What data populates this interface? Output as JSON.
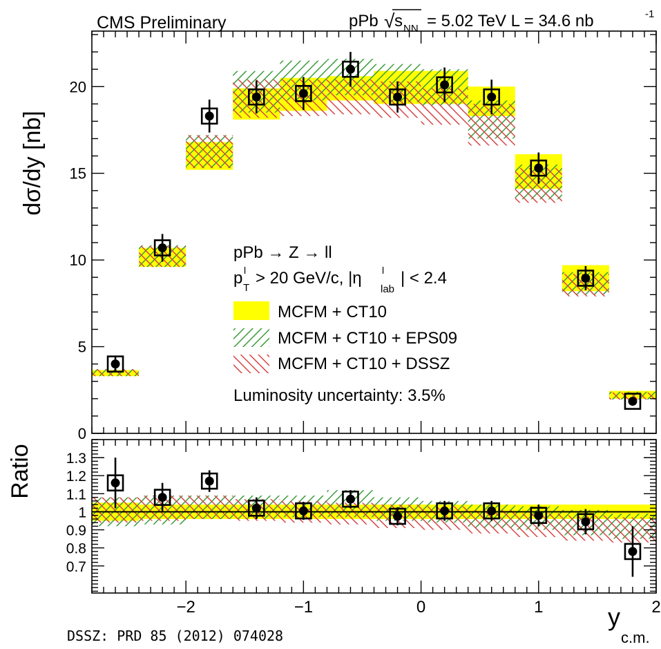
{
  "header": {
    "experiment": "CMS Preliminary",
    "system": "pPb",
    "sqrt_symbol": "√",
    "sqrt_arg": "s",
    "sqrt_sub": "NN",
    "energy": "= 5.02 TeV L = 34.6 nb",
    "lumi_exp": "-1"
  },
  "footer": {
    "reference": "DSSZ: PRD 85 (2012) 074028"
  },
  "annotations": {
    "process": "pPb → Z → ll",
    "cut_p": "p",
    "cut_p_sup": "l",
    "cut_p_sub": "T",
    "cut_mid": "> 20 GeV/c, |η",
    "cut_eta_sup": "l",
    "cut_eta_sub": "lab",
    "cut_end": "| < 2.4",
    "luminosity": "Luminosity uncertainty: 3.5%"
  },
  "legend": {
    "placement": "center",
    "entries": [
      {
        "label": "MCFM + CT10",
        "style": "solid",
        "color": "#ffff00"
      },
      {
        "label": "MCFM + CT10 + EPS09",
        "style": "hatch-forward",
        "color": "#3a9c3a"
      },
      {
        "label": "MCFM + CT10 + DSSZ",
        "style": "hatch-backward",
        "color": "#d64545"
      }
    ]
  },
  "colors": {
    "ct10": "#ffff00",
    "eps09": "#3a9c3a",
    "dssz": "#d64545",
    "marker": "#000000"
  },
  "chart_data": [
    {
      "type": "bar",
      "ylabel": "dσ/dy [nb]",
      "xlim": [
        -2.8,
        2.0
      ],
      "ylim": [
        0,
        23.2
      ],
      "yticks": [
        0,
        5,
        10,
        15,
        20
      ],
      "bins": [
        {
          "lo": -2.8,
          "hi": -2.4,
          "ct10": [
            3.3,
            3.65
          ],
          "eps09": [
            3.3,
            3.7
          ],
          "dssz": [
            3.3,
            3.7
          ]
        },
        {
          "lo": -2.4,
          "hi": -2.0,
          "ct10": [
            9.6,
            10.7
          ],
          "eps09": [
            9.6,
            10.85
          ],
          "dssz": [
            9.6,
            10.8
          ]
        },
        {
          "lo": -2.0,
          "hi": -1.6,
          "ct10": [
            15.2,
            16.8
          ],
          "eps09": [
            15.3,
            17.2
          ],
          "dssz": [
            15.3,
            17.2
          ]
        },
        {
          "lo": -1.6,
          "hi": -1.2,
          "ct10": [
            18.1,
            19.9
          ],
          "eps09": [
            18.5,
            20.9
          ],
          "dssz": [
            18.2,
            20.4
          ]
        },
        {
          "lo": -1.2,
          "hi": -0.8,
          "ct10": [
            18.6,
            20.5
          ],
          "eps09": [
            19.2,
            21.5
          ],
          "dssz": [
            18.3,
            20.4
          ]
        },
        {
          "lo": -0.8,
          "hi": -0.4,
          "ct10": [
            19.2,
            20.6
          ],
          "eps09": [
            19.5,
            21.6
          ],
          "dssz": [
            18.4,
            20.4
          ]
        },
        {
          "lo": -0.4,
          "hi": 0.0,
          "ct10": [
            19.0,
            20.9
          ],
          "eps09": [
            19.1,
            21.3
          ],
          "dssz": [
            18.2,
            20.3
          ]
        },
        {
          "lo": 0.0,
          "hi": 0.4,
          "ct10": [
            19.0,
            20.9
          ],
          "eps09": [
            18.9,
            21.0
          ],
          "dssz": [
            17.8,
            19.9
          ]
        },
        {
          "lo": 0.4,
          "hi": 0.8,
          "ct10": [
            18.3,
            20.0
          ],
          "eps09": [
            17.0,
            19.2
          ],
          "dssz": [
            16.6,
            19.0
          ]
        },
        {
          "lo": 0.8,
          "hi": 1.2,
          "ct10": [
            14.1,
            16.1
          ],
          "eps09": [
            13.5,
            15.5
          ],
          "dssz": [
            13.3,
            15.3
          ]
        },
        {
          "lo": 1.2,
          "hi": 1.6,
          "ct10": [
            8.2,
            9.7
          ],
          "eps09": [
            8.0,
            9.3
          ],
          "dssz": [
            7.9,
            9.2
          ]
        },
        {
          "lo": 1.6,
          "hi": 2.0,
          "ct10": [
            2.0,
            2.45
          ],
          "eps09": [
            1.95,
            2.4
          ],
          "dssz": [
            1.95,
            2.35
          ]
        }
      ],
      "points": [
        {
          "x": -2.6,
          "y": 4.0,
          "err": 0.45
        },
        {
          "x": -2.2,
          "y": 10.7,
          "err": 0.8
        },
        {
          "x": -1.8,
          "y": 18.3,
          "err": 0.95
        },
        {
          "x": -1.4,
          "y": 19.4,
          "err": 0.95
        },
        {
          "x": -1.0,
          "y": 19.6,
          "err": 0.95
        },
        {
          "x": -0.6,
          "y": 21.0,
          "err": 1.0
        },
        {
          "x": -0.2,
          "y": 19.4,
          "err": 0.9
        },
        {
          "x": 0.2,
          "y": 20.1,
          "err": 1.0
        },
        {
          "x": 0.6,
          "y": 19.4,
          "err": 1.0
        },
        {
          "x": 1.0,
          "y": 15.3,
          "err": 0.9
        },
        {
          "x": 1.4,
          "y": 8.95,
          "err": 0.7
        },
        {
          "x": 1.8,
          "y": 1.85,
          "err": 0.2
        }
      ]
    },
    {
      "type": "bar",
      "ylabel": "Ratio",
      "xlabel": "y",
      "xlabel_sub": "c.m.",
      "xlim": [
        -2.8,
        2.0
      ],
      "ylim": [
        0.55,
        1.4
      ],
      "yticks": [
        0.7,
        0.8,
        0.9,
        1,
        1.1,
        1.2,
        1.3
      ],
      "ytick_labels": [
        "0.7",
        "0.8",
        "0.9",
        "1",
        "1.1",
        "1.2",
        "1.3"
      ],
      "xticks": [
        -2,
        -1,
        0,
        1,
        2
      ],
      "xtick_labels": [
        "−2",
        "−1",
        "0",
        "1",
        "2"
      ],
      "reference_line": 1,
      "bins": [
        {
          "lo": -2.8,
          "hi": -2.4,
          "ct10": [
            0.95,
            1.05
          ],
          "eps09": [
            0.92,
            1.08
          ],
          "dssz": [
            0.94,
            1.08
          ]
        },
        {
          "lo": -2.4,
          "hi": -2.0,
          "ct10": [
            0.96,
            1.04
          ],
          "eps09": [
            0.93,
            1.09
          ],
          "dssz": [
            0.95,
            1.09
          ]
        },
        {
          "lo": -2.0,
          "hi": -1.6,
          "ct10": [
            0.96,
            1.04
          ],
          "eps09": [
            0.96,
            1.09
          ],
          "dssz": [
            0.96,
            1.09
          ]
        },
        {
          "lo": -1.6,
          "hi": -1.2,
          "ct10": [
            0.96,
            1.04
          ],
          "eps09": [
            0.96,
            1.09
          ],
          "dssz": [
            0.95,
            1.07
          ]
        },
        {
          "lo": -1.2,
          "hi": -0.8,
          "ct10": [
            0.96,
            1.04
          ],
          "eps09": [
            0.97,
            1.09
          ],
          "dssz": [
            0.94,
            1.06
          ]
        },
        {
          "lo": -0.8,
          "hi": -0.4,
          "ct10": [
            0.96,
            1.04
          ],
          "eps09": [
            0.97,
            1.12
          ],
          "dssz": [
            0.93,
            1.05
          ]
        },
        {
          "lo": -0.4,
          "hi": 0.0,
          "ct10": [
            0.96,
            1.04
          ],
          "eps09": [
            0.95,
            1.08
          ],
          "dssz": [
            0.91,
            1.04
          ]
        },
        {
          "lo": 0.0,
          "hi": 0.4,
          "ct10": [
            0.96,
            1.04
          ],
          "eps09": [
            0.94,
            1.06
          ],
          "dssz": [
            0.9,
            1.03
          ]
        },
        {
          "lo": 0.4,
          "hi": 0.8,
          "ct10": [
            0.96,
            1.04
          ],
          "eps09": [
            0.91,
            1.04
          ],
          "dssz": [
            0.88,
            1.01
          ]
        },
        {
          "lo": 0.8,
          "hi": 1.2,
          "ct10": [
            0.96,
            1.04
          ],
          "eps09": [
            0.9,
            1.03
          ],
          "dssz": [
            0.86,
            0.99
          ]
        },
        {
          "lo": 1.2,
          "hi": 1.6,
          "ct10": [
            0.96,
            1.04
          ],
          "eps09": [
            0.87,
            1.01
          ],
          "dssz": [
            0.84,
            0.98
          ]
        },
        {
          "lo": 1.6,
          "hi": 2.0,
          "ct10": [
            0.96,
            1.04
          ],
          "eps09": [
            0.85,
            0.99
          ],
          "dssz": [
            0.83,
            0.97
          ]
        }
      ],
      "points": [
        {
          "x": -2.6,
          "y": 1.16,
          "err": 0.14
        },
        {
          "x": -2.2,
          "y": 1.08,
          "err": 0.08
        },
        {
          "x": -1.8,
          "y": 1.17,
          "err": 0.06
        },
        {
          "x": -1.4,
          "y": 1.02,
          "err": 0.06
        },
        {
          "x": -1.0,
          "y": 1.005,
          "err": 0.05
        },
        {
          "x": -0.6,
          "y": 1.07,
          "err": 0.05
        },
        {
          "x": -0.2,
          "y": 0.975,
          "err": 0.05
        },
        {
          "x": 0.2,
          "y": 1.005,
          "err": 0.055
        },
        {
          "x": 0.6,
          "y": 1.005,
          "err": 0.055
        },
        {
          "x": 1.0,
          "y": 0.98,
          "err": 0.06
        },
        {
          "x": 1.4,
          "y": 0.945,
          "err": 0.07
        },
        {
          "x": 1.8,
          "y": 0.78,
          "err": 0.14
        }
      ]
    }
  ]
}
